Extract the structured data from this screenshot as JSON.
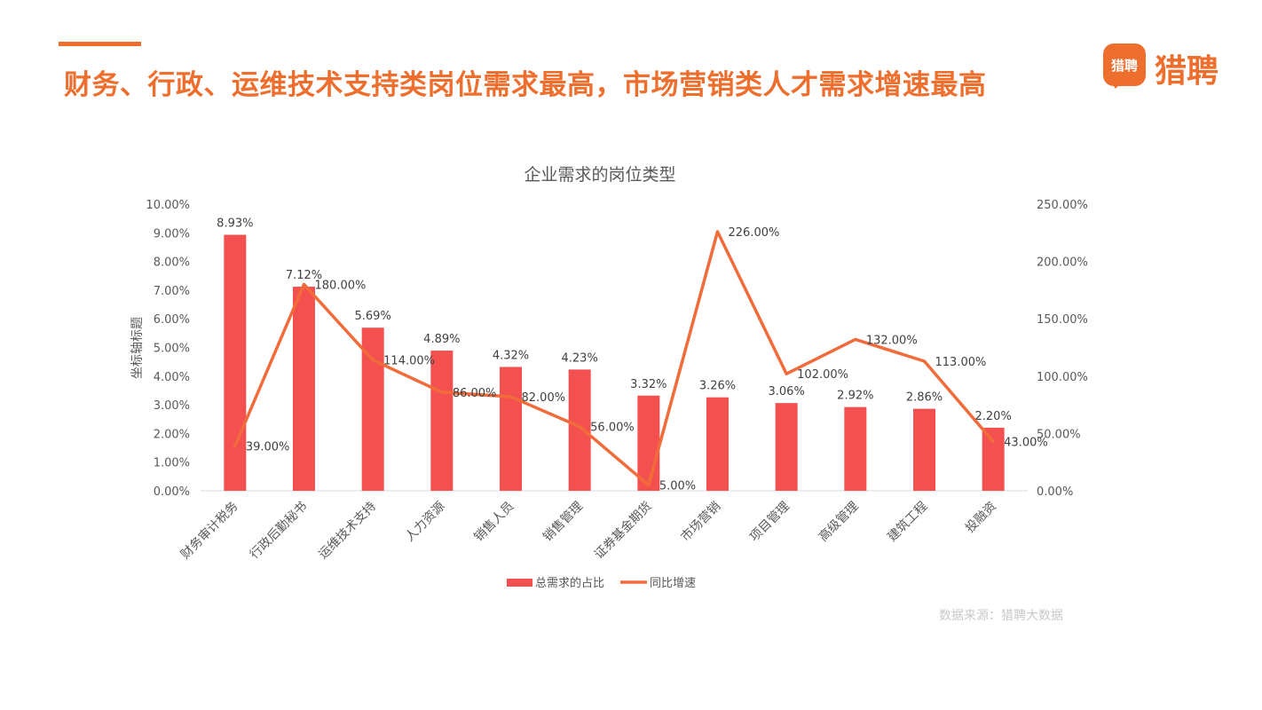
{
  "header": {
    "headline": "财务、行政、运维技术支持类岗位需求最高，市场营销类人才需求增速最高"
  },
  "brand": {
    "badge_text": "猎聘",
    "name": "猎聘",
    "icon": "liepin-logo-icon",
    "color": "#EE6E2D"
  },
  "footer": {
    "source": "数据来源：猎聘大数据"
  },
  "chart_data": {
    "type": "bar",
    "title": "企业需求的岗位类型",
    "ylabel": "坐标轴标题",
    "ylabel_right": "",
    "categories": [
      "财务审计税务",
      "行政后勤秘书",
      "运维技术支持",
      "人力资源",
      "销售人员",
      "销售管理",
      "证券基金期货",
      "市场营销",
      "项目管理",
      "高级管理",
      "建筑工程",
      "投融资"
    ],
    "ylim": [
      0,
      10
    ],
    "y_ticks": [
      "0.00%",
      "1.00%",
      "2.00%",
      "3.00%",
      "4.00%",
      "5.00%",
      "6.00%",
      "7.00%",
      "8.00%",
      "9.00%",
      "10.00%"
    ],
    "y2lim": [
      0,
      250
    ],
    "y2_ticks": [
      "0.00%",
      "50.00%",
      "100.00%",
      "150.00%",
      "200.00%",
      "250.00%"
    ],
    "series": [
      {
        "name": "总需求的占比",
        "type": "bar",
        "axis": "left",
        "color": "#F4504F",
        "values": [
          8.93,
          7.12,
          5.69,
          4.89,
          4.32,
          4.23,
          3.32,
          3.26,
          3.06,
          2.92,
          2.86,
          2.2
        ],
        "labels": [
          "8.93%",
          "7.12%",
          "5.69%",
          "4.89%",
          "4.32%",
          "4.23%",
          "3.32%",
          "3.26%",
          "3.06%",
          "2.92%",
          "2.86%",
          "2.20%"
        ]
      },
      {
        "name": "同比增速",
        "type": "line",
        "axis": "right",
        "color": "#F26B3A",
        "values": [
          39,
          180,
          114,
          86,
          82,
          56,
          5,
          226,
          102,
          132,
          113,
          43
        ],
        "labels": [
          "39.00%",
          "180.00%",
          "114.00%",
          "86.00%",
          "82.00%",
          "56.00%",
          "5.00%",
          "226.00%",
          "102.00%",
          "132.00%",
          "113.00%",
          "43.00%"
        ]
      }
    ],
    "grid": false,
    "legend_position": "bottom"
  }
}
